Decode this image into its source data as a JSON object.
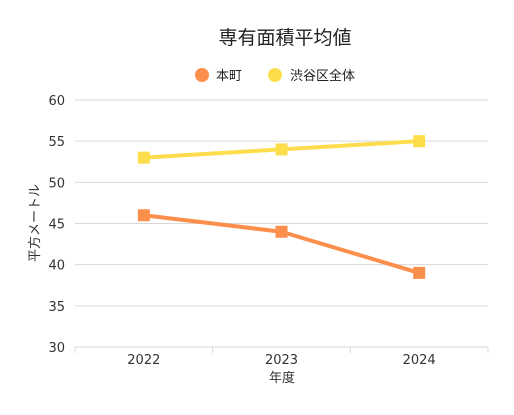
{
  "chart_data": {
    "type": "line",
    "title": "専有面積平均値",
    "xlabel": "年度",
    "ylabel": "平方メートル",
    "categories": [
      "2022",
      "2023",
      "2024"
    ],
    "ylim": [
      30,
      60
    ],
    "yticks": [
      "60",
      "55",
      "50",
      "45",
      "40",
      "35",
      "30"
    ],
    "grid": true,
    "legend_position": "top-center",
    "series": [
      {
        "name": "本町",
        "values": [
          46,
          44,
          39
        ],
        "color": "#fd8f4c",
        "marker": "square"
      },
      {
        "name": "渋谷区全体",
        "values": [
          53,
          54,
          55
        ],
        "color": "#fedd4d",
        "marker": "square"
      }
    ]
  }
}
